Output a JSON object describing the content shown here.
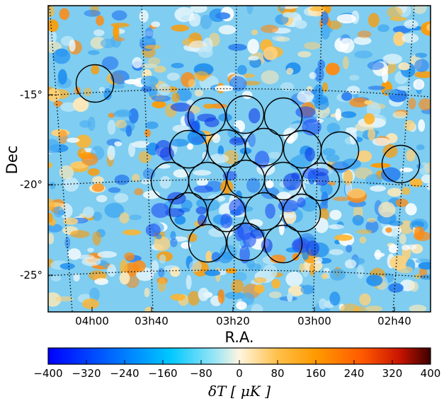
{
  "chart_data": {
    "type": "heatmap",
    "title": "",
    "xlabel": "R.A.",
    "ylabel": "Dec",
    "x_ticks": [
      "04h00",
      "03h40",
      "03h20",
      "03h00",
      "02h40"
    ],
    "y_ticks": [
      "-15°",
      "-20°",
      "-25°"
    ],
    "colorbar": {
      "label": "δT [ μK ]",
      "ticks": [
        "−400",
        "−320",
        "−240",
        "−160",
        "−80",
        "0",
        "80",
        "160",
        "240",
        "320",
        "400"
      ],
      "range": [
        -400,
        400
      ],
      "colors": [
        "#0000ff",
        "#0070ff",
        "#00c8ff",
        "#9fe6f5",
        "#fff5e0",
        "#ffc04a",
        "#ff9a00",
        "#ff5a00",
        "#c81400",
        "#3c0000"
      ]
    },
    "grid": "dotted graticule",
    "annotations": "black circles marking survey fields"
  }
}
